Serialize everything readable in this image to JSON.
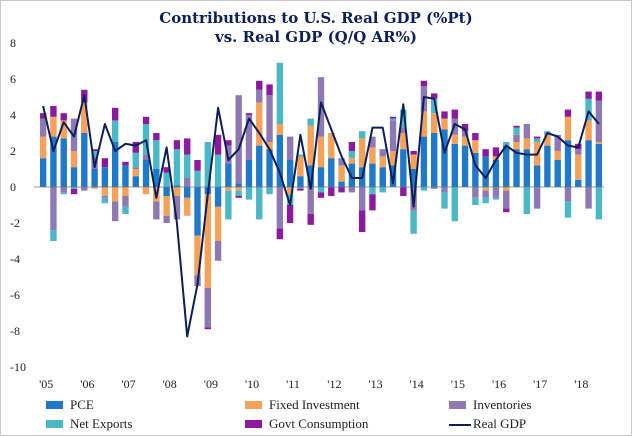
{
  "chart_data": {
    "type": "bar",
    "title": "Contributions to U.S. Real GDP (%Pt)",
    "subtitle": "vs. Real GDP (Q/Q AR%)",
    "ylim": [
      -10,
      8
    ],
    "yticks": [
      8,
      6,
      4,
      2,
      0,
      -2,
      -4,
      -6,
      -8,
      -10
    ],
    "xticks": [
      "'05",
      "'06",
      "'07",
      "'08",
      "'09",
      "'10",
      "'11",
      "'12",
      "'13",
      "'14",
      "'15",
      "'16",
      "'17",
      "'18"
    ],
    "quarters": [
      "05Q1",
      "05Q2",
      "05Q3",
      "05Q4",
      "06Q1",
      "06Q2",
      "06Q3",
      "06Q4",
      "07Q1",
      "07Q2",
      "07Q3",
      "07Q4",
      "08Q1",
      "08Q2",
      "08Q3",
      "08Q4",
      "09Q1",
      "09Q2",
      "09Q3",
      "09Q4",
      "10Q1",
      "10Q2",
      "10Q3",
      "10Q4",
      "11Q1",
      "11Q2",
      "11Q3",
      "11Q4",
      "12Q1",
      "12Q2",
      "12Q3",
      "12Q4",
      "13Q1",
      "13Q2",
      "13Q3",
      "13Q4",
      "14Q1",
      "14Q2",
      "14Q3",
      "14Q4",
      "15Q1",
      "15Q2",
      "15Q3",
      "15Q4",
      "16Q1",
      "16Q2",
      "16Q3",
      "16Q4",
      "17Q1",
      "17Q2",
      "17Q3",
      "17Q4",
      "18Q1",
      "18Q2",
      "18Q3"
    ],
    "colors": {
      "PCE": "#1f78c8",
      "Fixed Investment": "#f4a259",
      "Inventories": "#8e79b5",
      "Net Exports": "#4bb8c8",
      "Govt Consumption": "#8b1a9e",
      "Real GDP": "#0b1f5c"
    },
    "series": [
      {
        "name": "PCE",
        "values": [
          1.6,
          2.8,
          2.7,
          1.1,
          3.0,
          1.0,
          1.1,
          2.5,
          1.2,
          0.6,
          1.5,
          1.0,
          -0.5,
          0.1,
          -0.6,
          -2.7,
          -0.4,
          -1.1,
          1.3,
          0.2,
          1.5,
          2.3,
          2.1,
          2.9,
          1.5,
          0.6,
          1.2,
          1.1,
          1.6,
          0.3,
          1.3,
          1.1,
          1.3,
          1.1,
          1.2,
          2.1,
          1.0,
          2.8,
          3.0,
          3.2,
          2.4,
          2.3,
          1.9,
          1.7,
          1.5,
          2.3,
          2.1,
          2.1,
          1.2,
          2.3,
          1.5,
          2.6,
          0.4,
          2.6,
          2.4
        ]
      },
      {
        "name": "Fixed Investment",
        "values": [
          1.2,
          1.1,
          1.0,
          0.9,
          1.7,
          -0.1,
          -0.5,
          -0.8,
          -0.5,
          0.4,
          -0.4,
          -0.8,
          -1.1,
          -0.5,
          -1.0,
          -2.2,
          -5.2,
          -1.9,
          -0.2,
          -0.2,
          0.0,
          2.4,
          0.4,
          0.6,
          -0.4,
          1.1,
          2.2,
          1.7,
          1.4,
          0.9,
          0.3,
          1.6,
          0.9,
          0.6,
          0.8,
          0.9,
          0.8,
          1.4,
          1.1,
          0.6,
          0.5,
          0.5,
          0.7,
          -0.2,
          0.2,
          -0.2,
          0.4,
          0.6,
          1.3,
          0.6,
          0.5,
          1.3,
          1.4,
          1.1,
          0.1
        ]
      },
      {
        "name": "Inventories",
        "values": [
          1.0,
          -2.4,
          -0.3,
          1.8,
          -0.2,
          0.7,
          -0.1,
          -1.1,
          -0.6,
          0.1,
          0.3,
          -1.0,
          -0.4,
          -1.3,
          0.5,
          -0.6,
          -2.2,
          -1.1,
          1.0,
          4.9,
          2.5,
          0.7,
          2.6,
          -2.3,
          1.3,
          -0.1,
          -1.5,
          3.3,
          0.0,
          0.4,
          -0.3,
          -1.3,
          0.6,
          0.4,
          1.7,
          0.3,
          -1.3,
          1.4,
          -0.1,
          -0.3,
          0.9,
          0.3,
          -0.6,
          -0.4,
          -0.6,
          -1.0,
          0.4,
          0.8,
          -1.2,
          0.1,
          0.9,
          -0.8,
          0.3,
          -1.2,
          2.3
        ]
      },
      {
        "name": "Net Exports",
        "values": [
          0.0,
          -0.6,
          -0.1,
          -0.1,
          0.0,
          0.3,
          -0.3,
          1.2,
          -0.4,
          0.8,
          1.7,
          1.6,
          0.8,
          2.0,
          1.3,
          0.9,
          2.5,
          1.8,
          -1.6,
          -0.3,
          -0.7,
          -1.8,
          -0.4,
          3.4,
          -0.6,
          0.1,
          0.4,
          -0.3,
          0.0,
          0.0,
          0.4,
          0.4,
          -0.4,
          -0.3,
          0.1,
          1.0,
          -1.3,
          -0.2,
          0.8,
          -0.9,
          -1.9,
          0.0,
          -0.4,
          -0.3,
          -0.1,
          0.2,
          0.4,
          -1.5,
          0.2,
          0.1,
          0.0,
          -0.9,
          0.0,
          1.2,
          -1.8
        ]
      },
      {
        "name": "Govt Consumption",
        "values": [
          0.3,
          0.6,
          0.4,
          -0.3,
          0.7,
          0.1,
          0.5,
          0.7,
          0.2,
          0.6,
          0.4,
          0.4,
          0.3,
          0.5,
          0.9,
          0.6,
          -0.1,
          1.1,
          0.3,
          -0.1,
          0.1,
          0.5,
          0.6,
          -0.6,
          -1.0,
          -0.1,
          -0.6,
          -0.3,
          -0.5,
          -0.3,
          0.5,
          -1.2,
          -0.9,
          0.0,
          0.1,
          -0.5,
          0.2,
          0.3,
          0.3,
          0.4,
          0.5,
          0.4,
          0.4,
          0.4,
          0.5,
          -0.2,
          0.1,
          0.0,
          0.1,
          0.0,
          0.0,
          0.4,
          0.3,
          0.4,
          0.5
        ]
      },
      {
        "name": "Real GDP",
        "values": [
          4.5,
          2.0,
          3.6,
          2.8,
          5.1,
          1.1,
          3.5,
          2.0,
          2.4,
          2.3,
          2.6,
          -0.6,
          2.2,
          -2.0,
          -8.3,
          -5.4,
          -0.4,
          4.4,
          1.5,
          2.1,
          3.8,
          3.0,
          2.1,
          0.8,
          -1.0,
          2.9,
          -0.1,
          4.7,
          3.2,
          1.7,
          0.5,
          0.5,
          3.3,
          3.3,
          0.2,
          4.6,
          -1.1,
          5.0,
          4.9,
          1.9,
          3.5,
          3.2,
          1.2,
          0.5,
          1.5,
          2.3,
          1.9,
          1.8,
          1.8,
          3.0,
          2.8,
          2.3,
          2.2,
          4.2,
          3.5
        ]
      }
    ]
  }
}
